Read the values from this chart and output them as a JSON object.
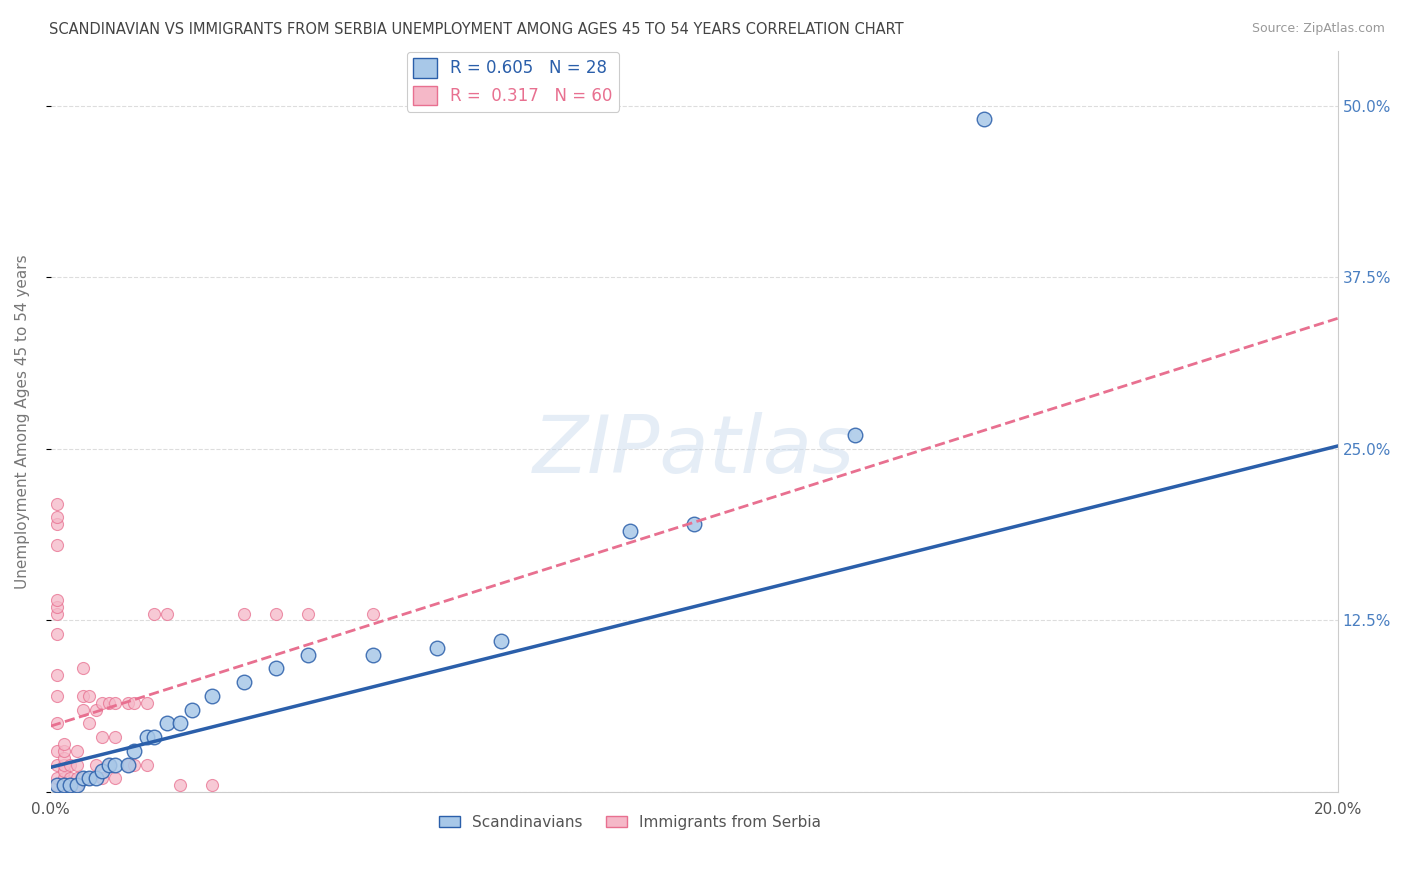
{
  "title": "SCANDINAVIAN VS IMMIGRANTS FROM SERBIA UNEMPLOYMENT AMONG AGES 45 TO 54 YEARS CORRELATION CHART",
  "source": "Source: ZipAtlas.com",
  "ylabel": "Unemployment Among Ages 45 to 54 years",
  "xlim": [
    0.0,
    0.2
  ],
  "ylim": [
    0.0,
    0.54
  ],
  "yticks": [
    0.0,
    0.125,
    0.25,
    0.375,
    0.5
  ],
  "ytick_labels": [
    "",
    "12.5%",
    "25.0%",
    "37.5%",
    "50.0%"
  ],
  "xticks": [
    0.0,
    0.05,
    0.1,
    0.15,
    0.2
  ],
  "xtick_labels": [
    "0.0%",
    "",
    "",
    "",
    "20.0%"
  ],
  "legend_entries": [
    {
      "label": "R = 0.605   N = 28"
    },
    {
      "label": "R =  0.317   N = 60"
    }
  ],
  "legend_labels_bottom": [
    "Scandinavians",
    "Immigrants from Serbia"
  ],
  "scandinavian_color": "#a8c8e8",
  "serbia_color": "#f5b8c8",
  "trendline_scand_color": "#2b5faa",
  "trendline_serbia_color": "#e87090",
  "background_color": "#ffffff",
  "scand_R": 0.605,
  "serbia_R": 0.317,
  "scand_points": [
    [
      0.001,
      0.005
    ],
    [
      0.002,
      0.005
    ],
    [
      0.003,
      0.005
    ],
    [
      0.004,
      0.005
    ],
    [
      0.005,
      0.01
    ],
    [
      0.006,
      0.01
    ],
    [
      0.007,
      0.01
    ],
    [
      0.008,
      0.015
    ],
    [
      0.009,
      0.02
    ],
    [
      0.01,
      0.02
    ],
    [
      0.012,
      0.02
    ],
    [
      0.013,
      0.03
    ],
    [
      0.015,
      0.04
    ],
    [
      0.016,
      0.04
    ],
    [
      0.018,
      0.05
    ],
    [
      0.02,
      0.05
    ],
    [
      0.022,
      0.06
    ],
    [
      0.025,
      0.07
    ],
    [
      0.03,
      0.08
    ],
    [
      0.035,
      0.09
    ],
    [
      0.04,
      0.1
    ],
    [
      0.05,
      0.1
    ],
    [
      0.06,
      0.105
    ],
    [
      0.07,
      0.11
    ],
    [
      0.09,
      0.19
    ],
    [
      0.1,
      0.195
    ],
    [
      0.125,
      0.26
    ],
    [
      0.145,
      0.49
    ]
  ],
  "serbia_points": [
    [
      0.001,
      0.005
    ],
    [
      0.001,
      0.01
    ],
    [
      0.001,
      0.02
    ],
    [
      0.001,
      0.03
    ],
    [
      0.001,
      0.05
    ],
    [
      0.001,
      0.07
    ],
    [
      0.001,
      0.085
    ],
    [
      0.001,
      0.115
    ],
    [
      0.001,
      0.13
    ],
    [
      0.001,
      0.135
    ],
    [
      0.001,
      0.14
    ],
    [
      0.001,
      0.18
    ],
    [
      0.001,
      0.195
    ],
    [
      0.001,
      0.2
    ],
    [
      0.001,
      0.21
    ],
    [
      0.002,
      0.005
    ],
    [
      0.002,
      0.01
    ],
    [
      0.002,
      0.015
    ],
    [
      0.002,
      0.02
    ],
    [
      0.002,
      0.025
    ],
    [
      0.002,
      0.03
    ],
    [
      0.002,
      0.035
    ],
    [
      0.003,
      0.005
    ],
    [
      0.003,
      0.01
    ],
    [
      0.003,
      0.02
    ],
    [
      0.004,
      0.005
    ],
    [
      0.004,
      0.01
    ],
    [
      0.004,
      0.02
    ],
    [
      0.004,
      0.03
    ],
    [
      0.005,
      0.01
    ],
    [
      0.005,
      0.06
    ],
    [
      0.005,
      0.07
    ],
    [
      0.005,
      0.09
    ],
    [
      0.006,
      0.01
    ],
    [
      0.006,
      0.05
    ],
    [
      0.006,
      0.07
    ],
    [
      0.007,
      0.02
    ],
    [
      0.007,
      0.06
    ],
    [
      0.008,
      0.01
    ],
    [
      0.008,
      0.04
    ],
    [
      0.008,
      0.065
    ],
    [
      0.009,
      0.02
    ],
    [
      0.009,
      0.065
    ],
    [
      0.01,
      0.01
    ],
    [
      0.01,
      0.04
    ],
    [
      0.01,
      0.065
    ],
    [
      0.012,
      0.02
    ],
    [
      0.012,
      0.065
    ],
    [
      0.013,
      0.02
    ],
    [
      0.013,
      0.065
    ],
    [
      0.015,
      0.02
    ],
    [
      0.015,
      0.065
    ],
    [
      0.016,
      0.13
    ],
    [
      0.018,
      0.13
    ],
    [
      0.02,
      0.005
    ],
    [
      0.025,
      0.005
    ],
    [
      0.03,
      0.13
    ],
    [
      0.035,
      0.13
    ],
    [
      0.04,
      0.13
    ],
    [
      0.05,
      0.13
    ]
  ],
  "scand_trend_x0": 0.0,
  "scand_trend_y0": 0.018,
  "scand_trend_x1": 0.2,
  "scand_trend_y1": 0.252,
  "serbia_trend_x0": 0.0,
  "serbia_trend_y0": 0.048,
  "serbia_trend_x1": 0.2,
  "serbia_trend_y1": 0.345
}
